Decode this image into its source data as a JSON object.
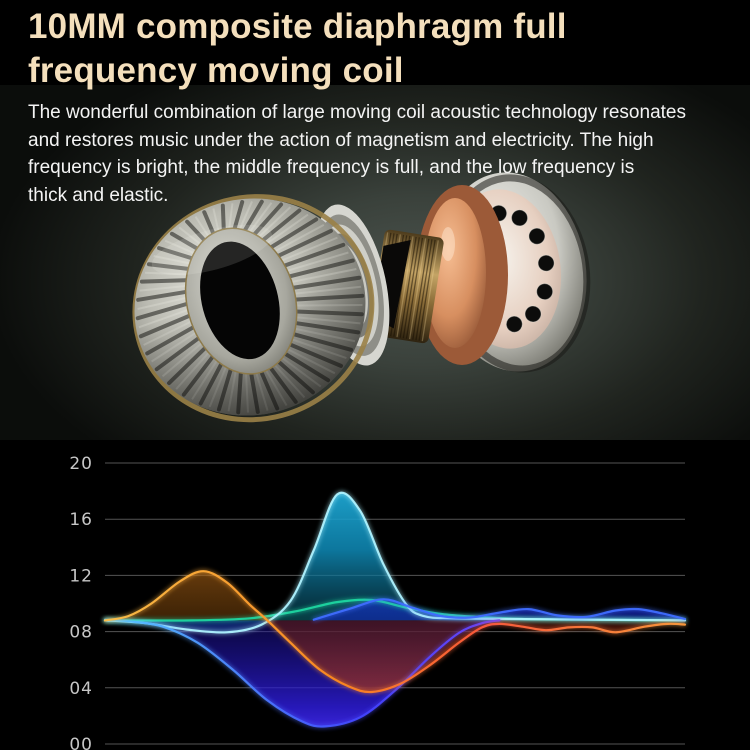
{
  "meta": {
    "background_color": "#000000",
    "title_color": "#f4dfbc",
    "body_text_color": "#f4f4f4",
    "axis_label_color": "#c6c6c6",
    "gridline_color": "#9a9a9a"
  },
  "header": {
    "title_lines": [
      "10MM composite diaphragm full",
      "frequency moving coil"
    ]
  },
  "body": {
    "paragraph_lines": [
      "The wonderful combination of large moving coil acoustic technology resonates",
      "and restores music under the action of magnetism and electricity. The high",
      "frequency is bright, the middle frequency is full, and the low frequency is",
      "thick and elastic."
    ]
  },
  "hero": {
    "components": [
      "ribbed-diaphragm-coil-ring",
      "voice-coil-ring-stack",
      "threaded-brass-core",
      "copper-magnet-disc",
      "perforated-back-plate"
    ]
  },
  "chart_data": {
    "type": "area",
    "title": "",
    "xlabel": "",
    "ylabel": "",
    "grid": true,
    "legend": false,
    "xlim": [
      0,
      100
    ],
    "ylim": [
      0,
      20
    ],
    "baseline": 8.8,
    "ytick_values": [
      20,
      16,
      12,
      8,
      4,
      0
    ],
    "ytick_labels": [
      "20",
      "16",
      "12",
      "08",
      "04",
      "00"
    ],
    "series": [
      {
        "name": "teal-wave",
        "stroke": "#1fd6a0",
        "fill_above": [
          [
            "0",
            "rgba(20,200,150,0.55)"
          ],
          [
            "1",
            "rgba(8,90,70,0.45)"
          ]
        ],
        "fill_below": [
          [
            "0",
            "rgba(8,90,70,0.30)"
          ],
          [
            "1",
            "rgba(8,90,70,0.30)"
          ]
        ],
        "points": [
          [
            0,
            8.8
          ],
          [
            15,
            8.8
          ],
          [
            25,
            8.95
          ],
          [
            33,
            9.45
          ],
          [
            40,
            10.1
          ],
          [
            46,
            10.25
          ],
          [
            52,
            9.7
          ],
          [
            58,
            9.25
          ],
          [
            64,
            9.05
          ],
          [
            72,
            8.9
          ],
          [
            82,
            8.85
          ],
          [
            100,
            8.8
          ]
        ]
      },
      {
        "name": "cyan-wave",
        "stroke": "#aef2ff",
        "fill_above": [
          [
            "0",
            "rgba(40,190,235,0.95)"
          ],
          [
            "0.55",
            "rgba(15,140,185,0.85)"
          ],
          [
            "1",
            "rgba(10,80,100,0.50)"
          ]
        ],
        "fill_below": [
          [
            "0",
            "rgba(15,110,150,0.45)"
          ],
          [
            "1",
            "rgba(30,160,210,0.60)"
          ]
        ],
        "points": [
          [
            0,
            8.8
          ],
          [
            7,
            8.6
          ],
          [
            14,
            8.15
          ],
          [
            21,
            7.95
          ],
          [
            27,
            8.5
          ],
          [
            32,
            10.2
          ],
          [
            36,
            13.8
          ],
          [
            40,
            17.75
          ],
          [
            44,
            16.6
          ],
          [
            48,
            12.8
          ],
          [
            52,
            9.9
          ],
          [
            55,
            9.1
          ],
          [
            60,
            8.95
          ],
          [
            70,
            8.9
          ],
          [
            85,
            8.85
          ],
          [
            100,
            8.8
          ]
        ]
      },
      {
        "name": "indigo-trough-wave",
        "stroke": [
          [
            "0",
            "#56c9ff"
          ],
          [
            "0.45",
            "#4343ff"
          ],
          [
            "1",
            "#a44dff"
          ]
        ],
        "fill_above": [
          [
            "0",
            "rgba(0,0,0,0)"
          ],
          [
            "1",
            "rgba(0,0,0,0)"
          ]
        ],
        "fill_below": [
          [
            "0",
            "rgba(28,18,160,0.40)"
          ],
          [
            "0.7",
            "rgba(48,30,230,0.80)"
          ],
          [
            "1",
            "rgba(80,50,255,0.95)"
          ]
        ],
        "points": [
          [
            0,
            8.85
          ],
          [
            5,
            8.7
          ],
          [
            10,
            8.35
          ],
          [
            16,
            7.2
          ],
          [
            22,
            5.3
          ],
          [
            28,
            3.1
          ],
          [
            34,
            1.6
          ],
          [
            38,
            1.25
          ],
          [
            44,
            1.9
          ],
          [
            50,
            3.8
          ],
          [
            56,
            6.2
          ],
          [
            61,
            7.9
          ],
          [
            65,
            8.6
          ],
          [
            68,
            8.8
          ]
        ]
      },
      {
        "name": "royal-blue-ripple-wave",
        "stroke": "#3d6bff",
        "fill_above": [
          [
            "0",
            "rgba(50,95,255,0.95)"
          ],
          [
            "1",
            "rgba(18,35,190,0.60)"
          ]
        ],
        "fill_below": [
          [
            "0",
            "rgba(18,30,160,0.35)"
          ],
          [
            "1",
            "rgba(18,30,160,0.35)"
          ]
        ],
        "points": [
          [
            36,
            8.85
          ],
          [
            42,
            9.6
          ],
          [
            48,
            10.3
          ],
          [
            53,
            9.7
          ],
          [
            58,
            9.1
          ],
          [
            63,
            9.0
          ],
          [
            68,
            9.35
          ],
          [
            73,
            9.6
          ],
          [
            78,
            9.15
          ],
          [
            83,
            9.05
          ],
          [
            88,
            9.5
          ],
          [
            92,
            9.6
          ],
          [
            96,
            9.3
          ],
          [
            100,
            8.9
          ]
        ]
      },
      {
        "name": "orange-wave",
        "stroke": [
          [
            "0",
            "#ffc14a"
          ],
          [
            "0.4",
            "#ff8a1e"
          ],
          [
            "0.65",
            "#ff5a3c"
          ],
          [
            "1",
            "#ff9a3c"
          ]
        ],
        "fill_above": [
          [
            "0",
            "rgba(255,150,40,0.90)"
          ],
          [
            "1",
            "rgba(110,62,10,0.55)"
          ]
        ],
        "fill_below": [
          [
            "0",
            "rgba(100,28,14,0.55)"
          ],
          [
            "1",
            "rgba(210,70,35,0.85)"
          ]
        ],
        "points": [
          [
            0,
            8.8
          ],
          [
            4,
            9.1
          ],
          [
            8,
            10.0
          ],
          [
            13,
            11.6
          ],
          [
            17,
            12.3
          ],
          [
            21,
            11.5
          ],
          [
            25,
            9.9
          ],
          [
            28,
            8.8
          ],
          [
            32,
            7.2
          ],
          [
            37,
            5.3
          ],
          [
            42,
            4.1
          ],
          [
            46,
            3.7
          ],
          [
            51,
            4.3
          ],
          [
            56,
            5.6
          ],
          [
            61,
            7.2
          ],
          [
            65,
            8.3
          ],
          [
            68,
            8.55
          ],
          [
            72,
            8.35
          ],
          [
            76,
            8.1
          ],
          [
            80,
            8.3
          ],
          [
            84,
            8.3
          ],
          [
            88,
            7.95
          ],
          [
            93,
            8.35
          ],
          [
            97,
            8.55
          ],
          [
            100,
            8.5
          ]
        ]
      }
    ]
  }
}
